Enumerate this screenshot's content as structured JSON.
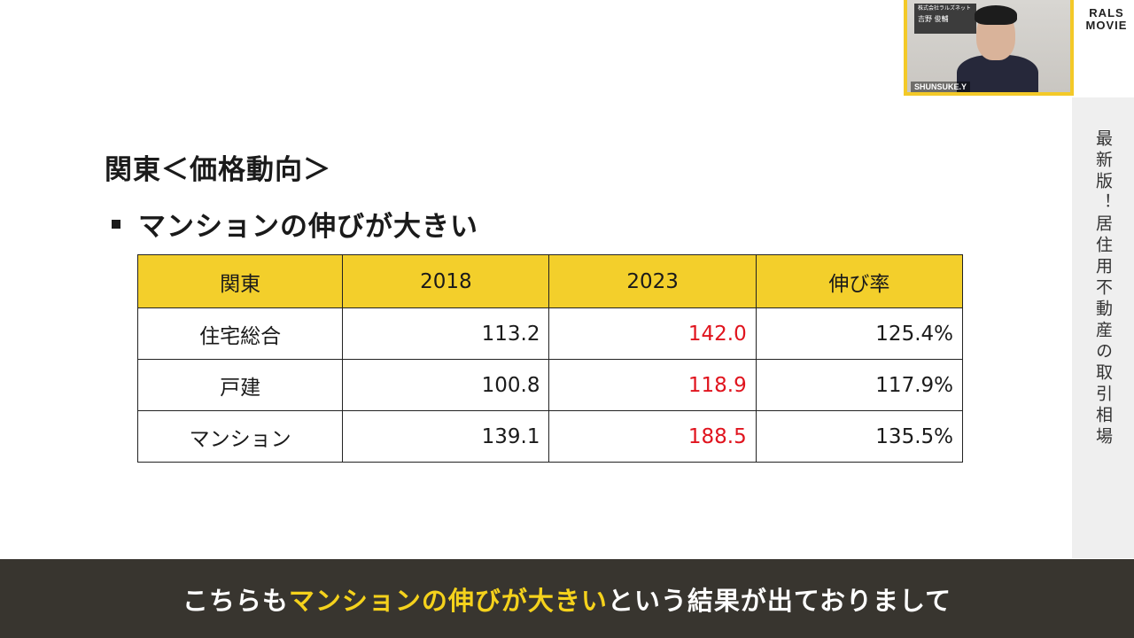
{
  "sidebar": {
    "title": "最新版！居住用不動産の取引相場"
  },
  "brand": {
    "line1": "RALS",
    "line2": "MOVIE"
  },
  "webcam": {
    "name_tag": "SHUNSUKE.Y",
    "sign_line1": "株式会社ラルズネット",
    "sign_line2": "吉野 俊輔"
  },
  "slide": {
    "title": "関東＜価格動向＞",
    "bullet": "マンションの伸びが大きい"
  },
  "table": {
    "headers": [
      "関東",
      "2018",
      "2023",
      "伸び率"
    ],
    "rows": [
      [
        "住宅総合",
        "113.2",
        "142.0",
        "125.4%"
      ],
      [
        "戸建",
        "100.8",
        "118.9",
        "117.9%"
      ],
      [
        "マンション",
        "139.1",
        "188.5",
        "135.5%"
      ]
    ],
    "highlight_color": "#e0141e",
    "header_color": "#f3cf2b"
  },
  "caption": {
    "before": "こちらも",
    "highlight": "マンションの伸びが大きい",
    "after": "という結果が出ておりまして"
  }
}
